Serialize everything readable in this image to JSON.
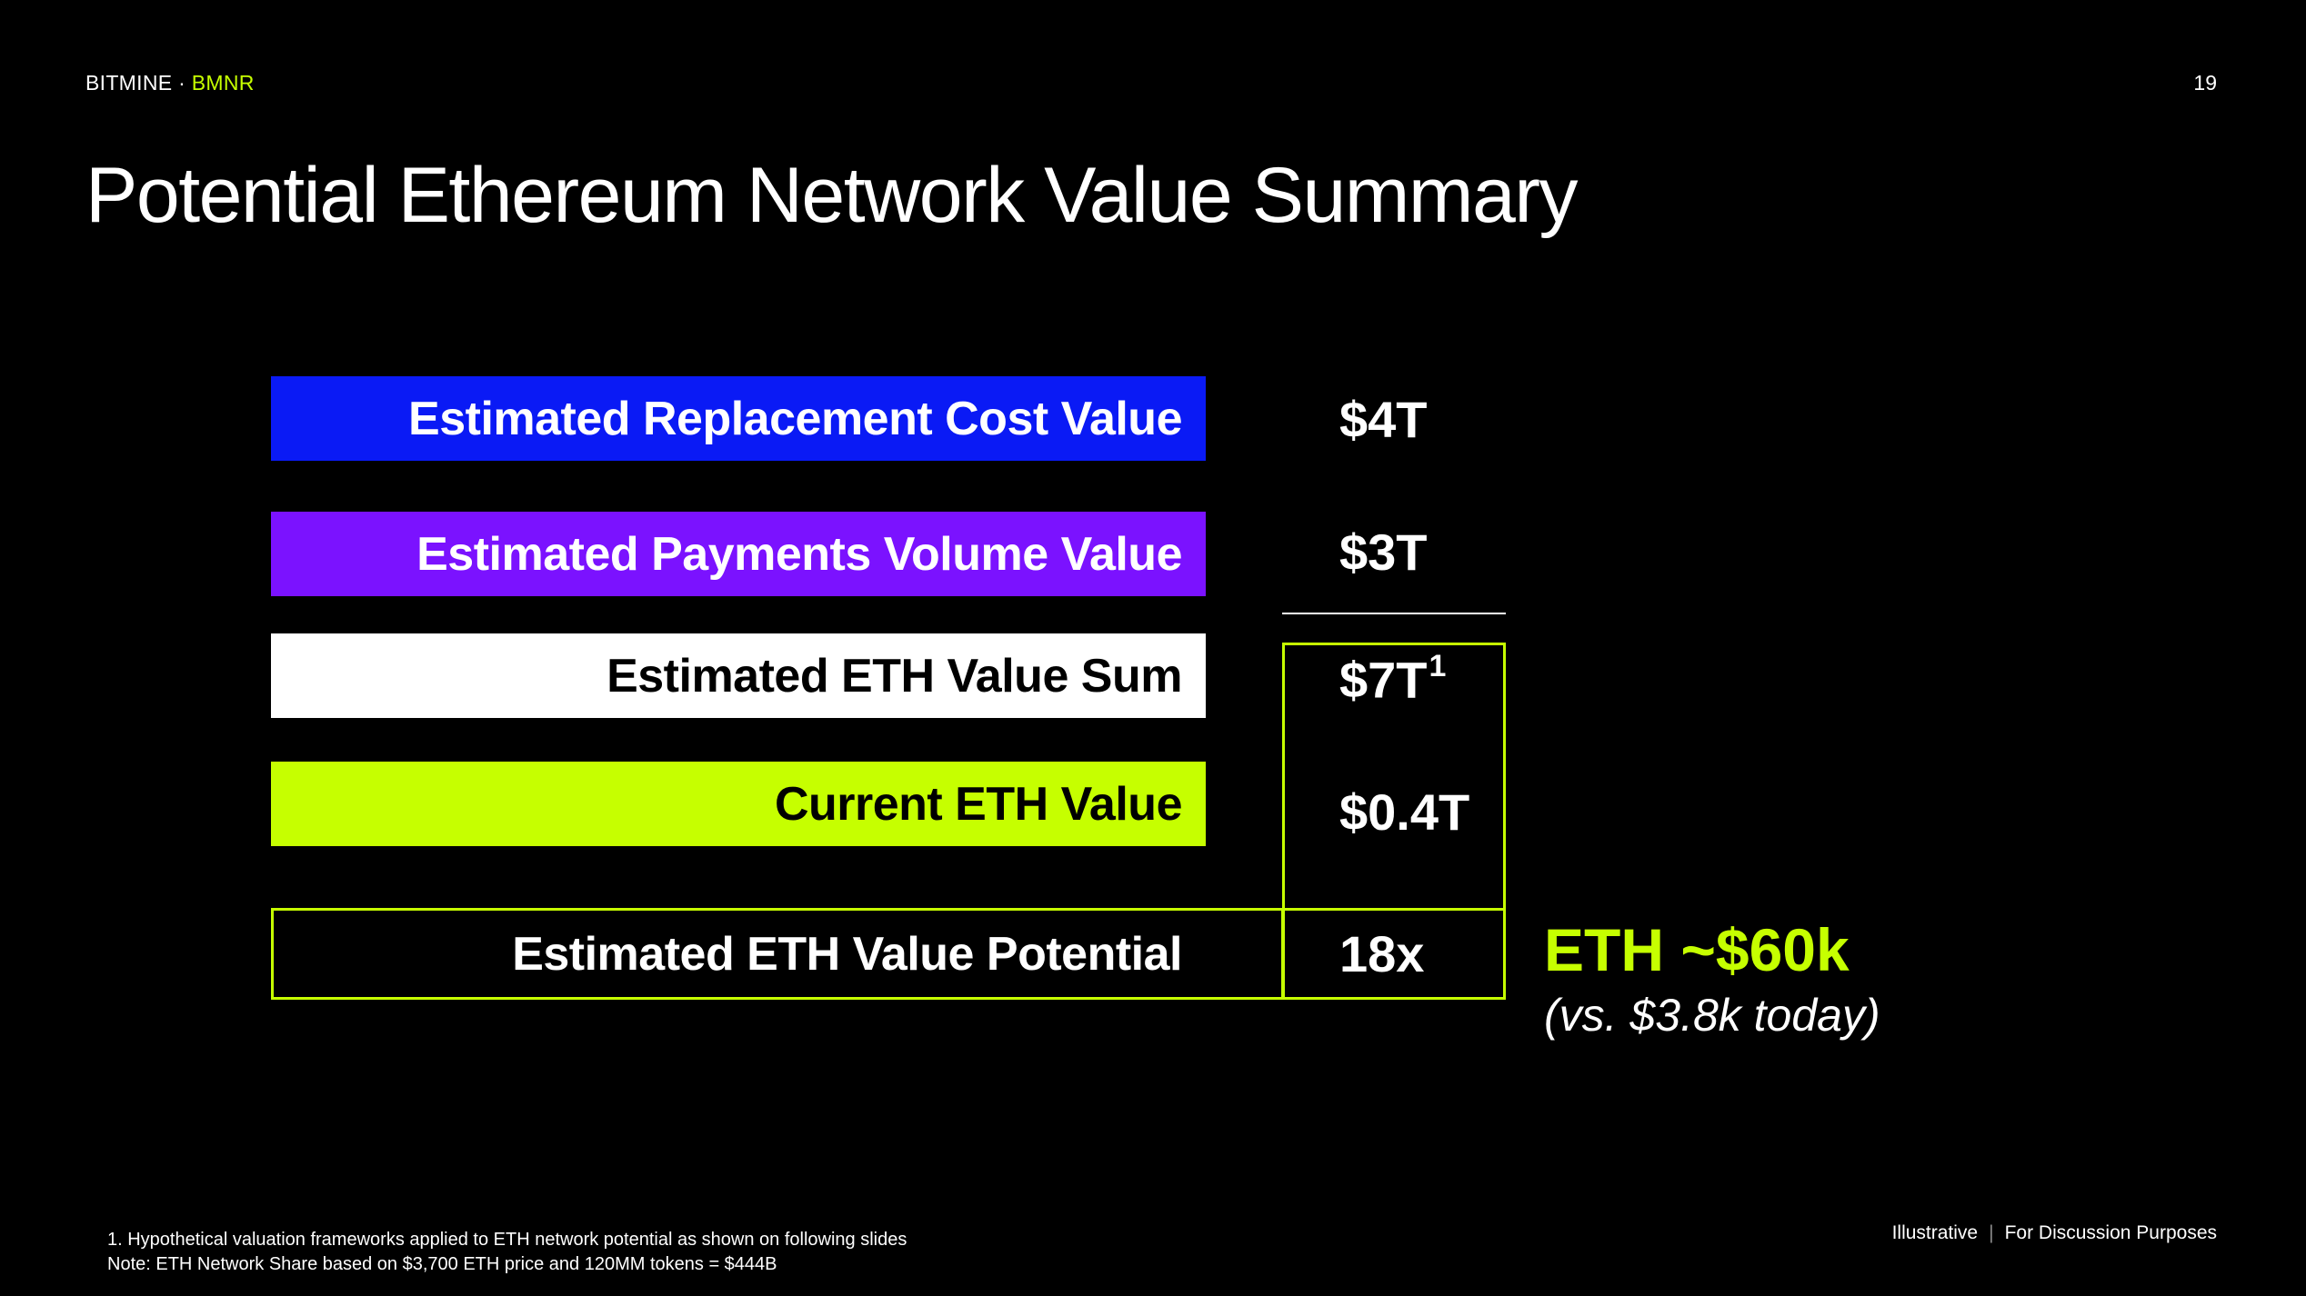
{
  "header": {
    "brand": "BITMINE",
    "brand_sep": " · ",
    "ticker": "BMNR",
    "page_number": "19"
  },
  "title": "Potential Ethereum Network Value Summary",
  "rows": [
    {
      "label": "Estimated Replacement Cost Value",
      "value": "$4T",
      "color": "#0a1af5"
    },
    {
      "label": "Estimated Payments Volume Value",
      "value": "$3T",
      "color": "#7b12ff"
    },
    {
      "label": "Estimated ETH Value Sum",
      "value": "$7T",
      "footnote_mark": "1",
      "color": "#ffffff"
    },
    {
      "label": "Current ETH Value",
      "value": "$0.4T",
      "color": "#c6ff00"
    }
  ],
  "potential": {
    "label": "Estimated ETH Value Potential",
    "value": "18x"
  },
  "callout": {
    "headline": "ETH ~$60k",
    "subtext": "(vs. $3.8k today)",
    "accent": "#c6ff00"
  },
  "footnotes": [
    "1. Hypothetical valuation frameworks applied to ETH network potential as shown on following slides",
    "Note: ETH Network Share based on $3,700 ETH price and 120MM tokens = $444B"
  ],
  "disclaimer": {
    "left": "Illustrative",
    "separator": "|",
    "right": "For Discussion Purposes"
  }
}
